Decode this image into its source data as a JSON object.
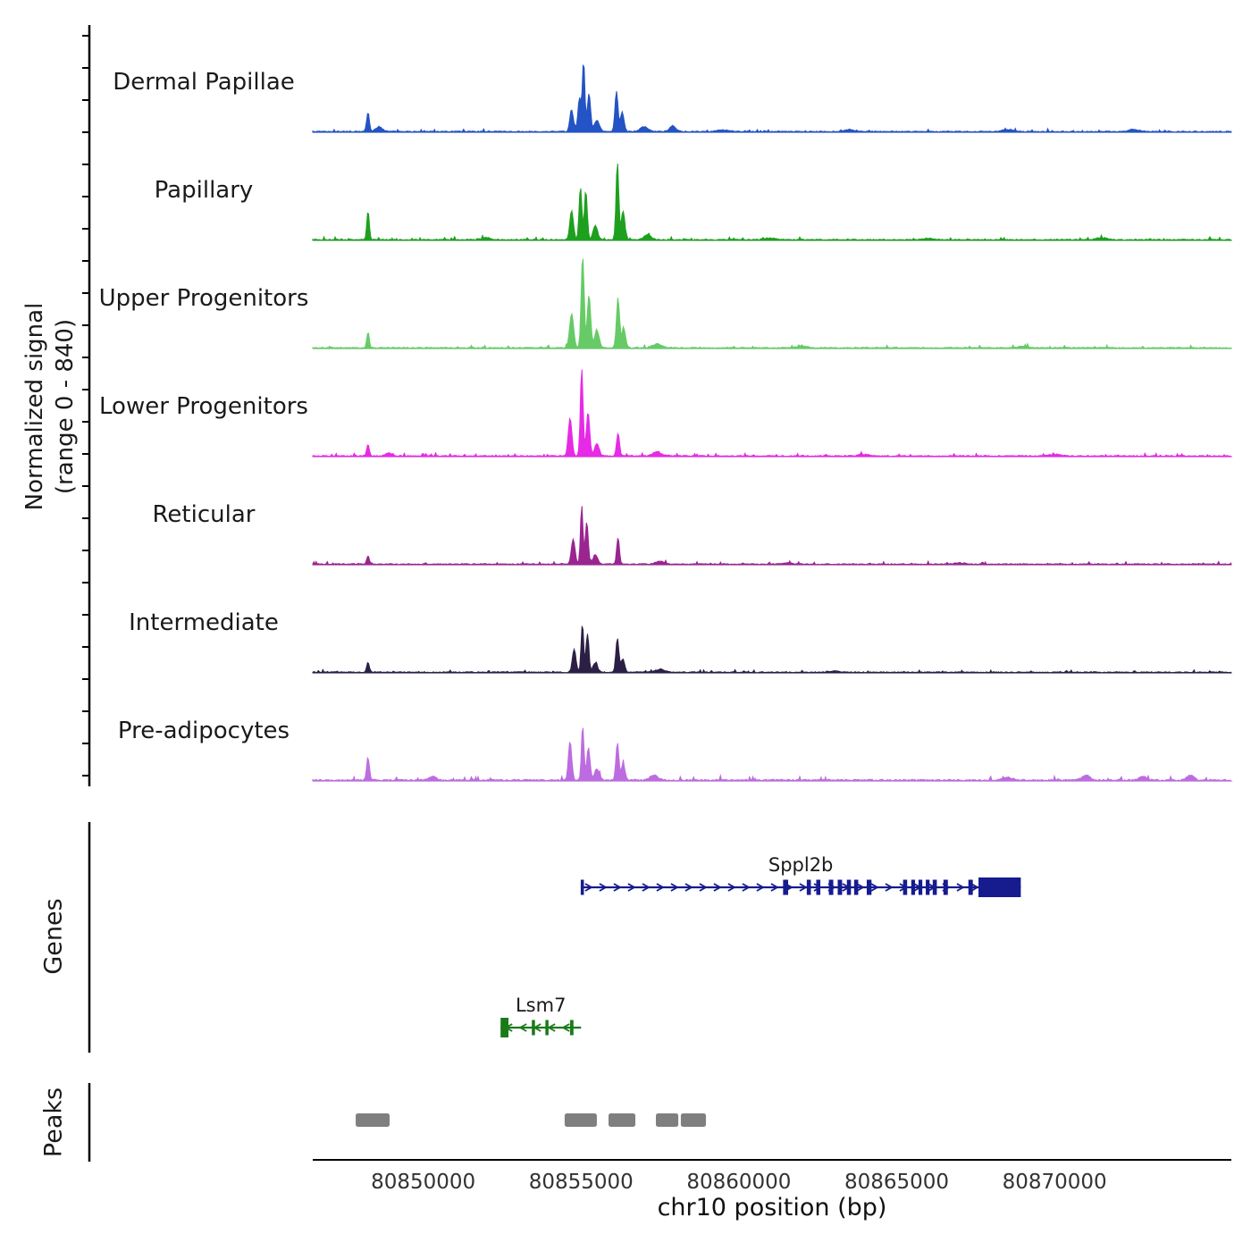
{
  "chart_data": {
    "type": "area",
    "chart_kind": "genome-browser-signal-tracks",
    "x_domain_bp": [
      80846500,
      80875600
    ],
    "x_axis": {
      "title": "chr10 position (bp)",
      "ticks": [
        80850000,
        80855000,
        80860000,
        80865000,
        80870000
      ]
    },
    "y_axis": {
      "label_line1": "Normalized signal",
      "label_line2": "(range 0 - 840)",
      "range": [
        0,
        840
      ]
    },
    "tracks": [
      {
        "label": "Dermal Papillae",
        "color": "#2353c4",
        "noise": 10,
        "spikes": [
          [
            80848250,
            170,
            60
          ],
          [
            80848600,
            42,
            150
          ],
          [
            80854700,
            185,
            80
          ],
          [
            80854950,
            295,
            70
          ],
          [
            80855080,
            615,
            55
          ],
          [
            80855250,
            335,
            70
          ],
          [
            80855500,
            100,
            110
          ],
          [
            80856120,
            355,
            65
          ],
          [
            80856300,
            170,
            80
          ],
          [
            80857000,
            42,
            180
          ],
          [
            80857900,
            50,
            140
          ],
          [
            80859500,
            13,
            300
          ],
          [
            80863500,
            17,
            250
          ],
          [
            80868500,
            17,
            250
          ],
          [
            80872500,
            17,
            250
          ]
        ]
      },
      {
        "label": "Papillary",
        "color": "#1ea01e",
        "noise": 10,
        "spikes": [
          [
            80848250,
            250,
            55
          ],
          [
            80854700,
            250,
            80
          ],
          [
            80854980,
            460,
            60
          ],
          [
            80855150,
            420,
            65
          ],
          [
            80855450,
            126,
            100
          ],
          [
            80856150,
            672,
            60
          ],
          [
            80856330,
            250,
            80
          ],
          [
            80857100,
            42,
            160
          ],
          [
            80852000,
            17,
            200
          ],
          [
            80861000,
            13,
            250
          ],
          [
            80866000,
            13,
            250
          ],
          [
            80871500,
            17,
            250
          ]
        ]
      },
      {
        "label": "Upper Progenitors",
        "color": "#66cb66",
        "noise": 10,
        "spikes": [
          [
            80848250,
            135,
            55
          ],
          [
            80854700,
            295,
            90
          ],
          [
            80855050,
            806,
            65
          ],
          [
            80855250,
            460,
            75
          ],
          [
            80855500,
            150,
            100
          ],
          [
            80856170,
            420,
            70
          ],
          [
            80856350,
            170,
            80
          ],
          [
            80857400,
            34,
            200
          ],
          [
            80862000,
            13,
            250
          ],
          [
            80869000,
            13,
            250
          ]
        ]
      },
      {
        "label": "Lower Progenitors",
        "color": "#e62ae6",
        "noise": 10,
        "spikes": [
          [
            80848250,
            100,
            55
          ],
          [
            80848900,
            25,
            150
          ],
          [
            80854650,
            335,
            80
          ],
          [
            80855020,
            765,
            60
          ],
          [
            80855220,
            380,
            75
          ],
          [
            80855500,
            110,
            100
          ],
          [
            80856170,
            200,
            65
          ],
          [
            80857400,
            34,
            200
          ],
          [
            80864000,
            13,
            250
          ],
          [
            80870000,
            13,
            250
          ]
        ]
      },
      {
        "label": "Reticular",
        "color": "#9a2590",
        "noise": 9,
        "spikes": [
          [
            80848250,
            76,
            55
          ],
          [
            80854750,
            220,
            80
          ],
          [
            80855020,
            512,
            55
          ],
          [
            80855180,
            370,
            65
          ],
          [
            80855450,
            84,
            100
          ],
          [
            80856170,
            235,
            60
          ],
          [
            80857500,
            25,
            200
          ],
          [
            80861500,
            10,
            250
          ],
          [
            80867000,
            10,
            250
          ]
        ]
      },
      {
        "label": "Intermediate",
        "color": "#2c1f45",
        "noise": 9,
        "spikes": [
          [
            80848250,
            84,
            60
          ],
          [
            80854780,
            200,
            80
          ],
          [
            80855040,
            420,
            55
          ],
          [
            80855200,
            335,
            65
          ],
          [
            80855450,
            84,
            100
          ],
          [
            80856150,
            295,
            65
          ],
          [
            80856320,
            118,
            80
          ],
          [
            80857500,
            25,
            200
          ],
          [
            80863000,
            10,
            250
          ]
        ]
      },
      {
        "label": "Pre-adipocytes",
        "color": "#bc6ce0",
        "noise": 14,
        "spikes": [
          [
            80848250,
            200,
            60
          ],
          [
            80850300,
            34,
            150
          ],
          [
            80854650,
            335,
            75
          ],
          [
            80855050,
            480,
            55
          ],
          [
            80855230,
            275,
            75
          ],
          [
            80855500,
            100,
            100
          ],
          [
            80856150,
            320,
            65
          ],
          [
            80856330,
            143,
            80
          ],
          [
            80857300,
            42,
            180
          ],
          [
            80868500,
            25,
            200
          ],
          [
            80871000,
            42,
            180
          ],
          [
            80872800,
            34,
            160
          ],
          [
            80874300,
            42,
            150
          ]
        ]
      }
    ],
    "genes_section": {
      "label": "Genes",
      "genes": [
        {
          "name": "Sppl2b",
          "color": "#161b8e",
          "strand": "+",
          "start": 80854990,
          "end": 80868930,
          "exons": [
            [
              80854990,
              80855090
            ],
            [
              80861400,
              80861560
            ],
            [
              80862150,
              80862280
            ],
            [
              80862450,
              80862580
            ],
            [
              80862850,
              80862990
            ],
            [
              80863130,
              80863270
            ],
            [
              80863420,
              80863550
            ],
            [
              80863650,
              80863780
            ],
            [
              80864050,
              80864200
            ],
            [
              80865200,
              80865330
            ],
            [
              80865460,
              80865580
            ],
            [
              80865690,
              80865810
            ],
            [
              80865920,
              80866040
            ],
            [
              80866140,
              80866270
            ],
            [
              80866480,
              80866620
            ],
            [
              80867270,
              80867410
            ]
          ],
          "thick_exons": [
            [
              80867590,
              80868930
            ]
          ]
        },
        {
          "name": "Lsm7",
          "color": "#1a7a1a",
          "strand": "-",
          "start": 80852450,
          "end": 80855000,
          "exons": [
            [
              80853440,
              80853540
            ],
            [
              80853870,
              80853960
            ],
            [
              80854650,
              80854760
            ]
          ],
          "thick_exons": [
            [
              80852450,
              80852700
            ]
          ]
        }
      ]
    },
    "peaks_section": {
      "label": "Peaks",
      "color": "#7f7f7f",
      "intervals": [
        [
          80847860,
          80848935
        ],
        [
          80854480,
          80855500
        ],
        [
          80855870,
          80856720
        ],
        [
          80857370,
          80858080
        ],
        [
          80858160,
          80858955
        ]
      ]
    }
  },
  "colors": {
    "axis": "#000000",
    "baseline": "#8a8a8a",
    "track_label": "#1a1a1a",
    "tick_label": "#333333"
  }
}
